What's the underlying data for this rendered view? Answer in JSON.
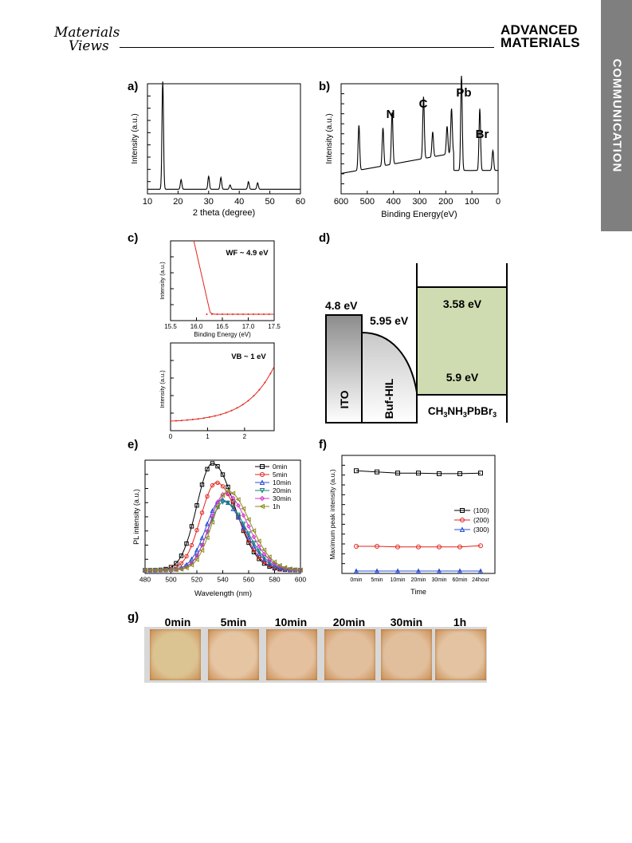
{
  "header": {
    "journal_left_line1": "Materials",
    "journal_left_line2": "Views",
    "journal_right_line1": "ADVANCED",
    "journal_right_line2": "MATERIALS",
    "side_tab": "COMMUNICATION"
  },
  "panels": {
    "a": {
      "label": "a)",
      "xlabel": "2 theta (degree)",
      "ylabel": "Intensity (a.u.)"
    },
    "b": {
      "label": "b)",
      "xlabel": "Binding Energy(eV)",
      "ylabel": "Intensity (a.u.)",
      "peak_labels": [
        "N",
        "C",
        "Pb",
        "Br"
      ]
    },
    "c": {
      "label": "c)",
      "top_annotation": "WF ~ 4.9 eV",
      "top_xlabel": "Binding Energy (eV)",
      "ylabel": "Intensity (a.u.)",
      "bottom_annotation": "VB ~ 1 eV"
    },
    "d": {
      "label": "d)",
      "ito_level": "4.8 eV",
      "hil_level": "5.95 eV",
      "lumo": "3.58 eV",
      "homo": "5.9 eV",
      "ito": "ITO",
      "hil": "Buf-HIL",
      "perovskite": "CH3NH3PbBr3"
    },
    "e": {
      "label": "e)",
      "xlabel": "Wavelength (nm)",
      "ylabel": "PL intensity (a.u.)"
    },
    "f": {
      "label": "f)",
      "xlabel": "Time",
      "ylabel": "Maximum peak intensity (a.u.)"
    },
    "g": {
      "label": "g)",
      "times": [
        "0min",
        "5min",
        "10min",
        "20min",
        "30min",
        "1h"
      ]
    }
  },
  "chart_data": [
    {
      "type": "line",
      "panel": "a",
      "x_ticks": [
        10,
        20,
        30,
        40,
        50,
        60
      ],
      "xlim": [
        10,
        60
      ],
      "peaks_x": [
        15,
        21,
        30,
        34,
        37,
        43,
        46
      ],
      "peaks_rel_height": [
        1.0,
        0.09,
        0.12,
        0.11,
        0.04,
        0.07,
        0.06
      ]
    },
    {
      "type": "line",
      "panel": "b",
      "x_ticks": [
        600,
        500,
        400,
        300,
        200,
        100,
        0
      ],
      "xlim": [
        600,
        0
      ]
    },
    {
      "type": "line",
      "panel": "c-top",
      "x_ticks": [
        15.5,
        16.0,
        16.5,
        17.0,
        17.5
      ],
      "xlim": [
        15.5,
        17.5
      ]
    },
    {
      "type": "line",
      "panel": "c-bottom",
      "x_ticks": [
        0,
        1,
        2
      ],
      "xlim": [
        0,
        2.8
      ]
    },
    {
      "type": "line",
      "panel": "e",
      "x_ticks": [
        480,
        500,
        520,
        540,
        560,
        580,
        600
      ],
      "xlim": [
        480,
        600
      ],
      "series": [
        {
          "name": "0min",
          "color": "#000000",
          "marker": "square",
          "center": 532,
          "rel_height": 1.0
        },
        {
          "name": "5min",
          "color": "#e0241b",
          "marker": "circle",
          "center": 535,
          "rel_height": 0.82
        },
        {
          "name": "10min",
          "color": "#2a4fd8",
          "marker": "triangle-up",
          "center": 539,
          "rel_height": 0.66
        },
        {
          "name": "20min",
          "color": "#17807a",
          "marker": "triangle-down",
          "center": 541,
          "rel_height": 0.64
        },
        {
          "name": "30min",
          "color": "#d432c8",
          "marker": "diamond",
          "center": 542,
          "rel_height": 0.72
        },
        {
          "name": "1h",
          "color": "#8a8a1e",
          "marker": "triangle-left",
          "center": 544,
          "rel_height": 0.74
        }
      ]
    },
    {
      "type": "line",
      "panel": "f",
      "categories": [
        "0min",
        "5min",
        "10min",
        "20min",
        "30min",
        "60min",
        "24hour"
      ],
      "series": [
        {
          "name": "(100)",
          "color": "#000000",
          "marker": "square",
          "values": [
            0.87,
            0.86,
            0.85,
            0.85,
            0.845,
            0.845,
            0.85
          ]
        },
        {
          "name": "(200)",
          "color": "#e0241b",
          "marker": "circle",
          "values": [
            0.23,
            0.23,
            0.225,
            0.225,
            0.225,
            0.225,
            0.235
          ]
        },
        {
          "name": "(300)",
          "color": "#2a4fd8",
          "marker": "triangle-up",
          "values": [
            0.02,
            0.02,
            0.02,
            0.02,
            0.02,
            0.02,
            0.02
          ]
        }
      ]
    }
  ]
}
